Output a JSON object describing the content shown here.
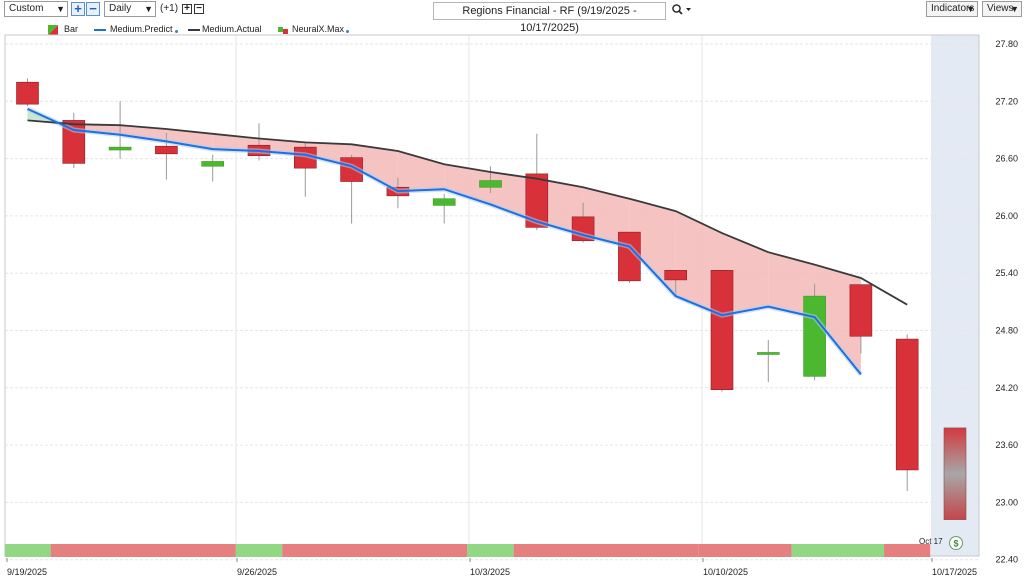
{
  "toolbar": {
    "range_select": "Custom",
    "interval_select": "Daily",
    "offset_label": "(+1)",
    "chart_title": "Regions Financial - RF (9/19/2025 - 10/17/2025)",
    "indicators_label": "Indicators",
    "views_label": "Views"
  },
  "legend": {
    "bar": "Bar",
    "predict": "Medium.Predict",
    "actual": "Medium.Actual",
    "neuralx": "NeuralX.Max"
  },
  "colors": {
    "up": "#4cb830",
    "down": "#d9313a",
    "predict": "#1f6fe0",
    "actual": "#3a3a3a",
    "fill_red": "#f4b8b8",
    "fill_green": "#bde6c6",
    "strip_red": "#e57f80",
    "strip_green": "#92d784",
    "forecast_bg": "#e3eaf3"
  },
  "chart_data": {
    "type": "candlestick",
    "ylim": [
      22.4,
      27.8
    ],
    "yticks": [
      "27.80",
      "27.20",
      "26.60",
      "26.00",
      "25.40",
      "24.80",
      "24.20",
      "23.60",
      "23.00",
      "22.40"
    ],
    "xlabels": [
      "9/19/2025",
      "9/26/2025",
      "10/3/2025",
      "10/10/2025",
      "10/17/2025"
    ],
    "marker_label": "Oct 17",
    "marker_badge": "$",
    "dates": [
      "9/19/2025",
      "9/22/2025",
      "9/23/2025",
      "9/24/2025",
      "9/25/2025",
      "9/26/2025",
      "9/29/2025",
      "9/30/2025",
      "10/1/2025",
      "10/2/2025",
      "10/3/2025",
      "10/6/2025",
      "10/7/2025",
      "10/8/2025",
      "10/9/2025",
      "10/10/2025",
      "10/13/2025",
      "10/14/2025",
      "10/15/2025",
      "10/16/2025"
    ],
    "bars": [
      {
        "o": 27.4,
        "h": 27.44,
        "l": 27.15,
        "c": 27.17
      },
      {
        "o": 27.0,
        "h": 27.08,
        "l": 26.5,
        "c": 26.55
      },
      {
        "o": 26.69,
        "h": 27.2,
        "l": 26.6,
        "c": 26.72
      },
      {
        "o": 26.73,
        "h": 26.87,
        "l": 26.38,
        "c": 26.65
      },
      {
        "o": 26.52,
        "h": 26.64,
        "l": 26.36,
        "c": 26.57
      },
      {
        "o": 26.74,
        "h": 26.97,
        "l": 26.58,
        "c": 26.63
      },
      {
        "o": 26.72,
        "h": 26.77,
        "l": 26.2,
        "c": 26.5
      },
      {
        "o": 26.61,
        "h": 26.64,
        "l": 25.92,
        "c": 26.36
      },
      {
        "o": 26.3,
        "h": 26.4,
        "l": 26.08,
        "c": 26.21
      },
      {
        "o": 26.11,
        "h": 26.23,
        "l": 25.92,
        "c": 26.18
      },
      {
        "o": 26.3,
        "h": 26.52,
        "l": 26.24,
        "c": 26.37
      },
      {
        "o": 26.44,
        "h": 26.86,
        "l": 25.85,
        "c": 25.88
      },
      {
        "o": 25.99,
        "h": 26.14,
        "l": 25.72,
        "c": 25.74
      },
      {
        "o": 25.83,
        "h": 25.83,
        "l": 25.3,
        "c": 25.32
      },
      {
        "o": 25.43,
        "h": 25.43,
        "l": 25.15,
        "c": 25.33
      },
      {
        "o": 25.43,
        "h": 25.43,
        "l": 24.16,
        "c": 24.18
      },
      {
        "o": 24.57,
        "h": 24.7,
        "l": 24.26,
        "c": 24.57
      },
      {
        "o": 24.32,
        "h": 25.29,
        "l": 24.28,
        "c": 25.16
      },
      {
        "o": 25.28,
        "h": 25.28,
        "l": 24.56,
        "c": 24.74
      },
      {
        "o": 24.71,
        "h": 24.76,
        "l": 23.12,
        "c": 23.34
      }
    ],
    "predict": [
      27.12,
      26.9,
      26.85,
      26.78,
      26.7,
      26.68,
      26.64,
      26.52,
      26.26,
      26.28,
      26.12,
      25.94,
      25.8,
      25.68,
      25.16,
      24.96,
      25.05,
      24.94,
      24.34
    ],
    "actual": [
      27.0,
      26.96,
      26.95,
      26.91,
      26.86,
      26.81,
      26.77,
      26.75,
      26.68,
      26.54,
      26.46,
      26.39,
      26.3,
      26.18,
      26.05,
      25.82,
      25.62,
      25.49,
      25.35,
      25.07
    ],
    "forecast": {
      "top": 23.78,
      "bottom": 22.82
    },
    "strip": [
      {
        "color": "green",
        "from": 0,
        "to": 1
      },
      {
        "color": "red",
        "from": 1,
        "to": 5
      },
      {
        "color": "green",
        "from": 5,
        "to": 6
      },
      {
        "color": "red",
        "from": 6,
        "to": 10
      },
      {
        "color": "green",
        "from": 10,
        "to": 11
      },
      {
        "color": "red",
        "from": 11,
        "to": 15
      },
      {
        "color": "red",
        "from": 15,
        "to": 17
      },
      {
        "color": "green",
        "from": 17,
        "to": 19
      },
      {
        "color": "red",
        "from": 19,
        "to": 20
      }
    ]
  }
}
